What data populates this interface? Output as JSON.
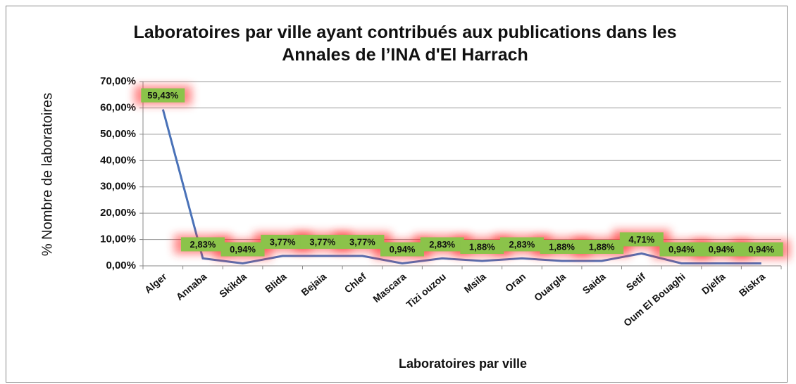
{
  "chart_data": {
    "type": "line",
    "title": "Laboratoires par ville ayant contribués aux publications dans les Annales de l’INA d'El Harrach",
    "xlabel": "Laboratoires par ville",
    "ylabel": "% Nombre de laboratoires",
    "categories": [
      "Alger",
      "Annaba",
      "Skikda",
      "Blida",
      "Bejaia",
      "Chlef",
      "Mascara",
      "Tizi ouzou",
      "Msila",
      "Oran",
      "Ouargla",
      "Saida",
      "Setif",
      "Oum El Bouaghi",
      "Djelfa",
      "Biskra"
    ],
    "series": [
      {
        "name": "Laboratoires",
        "color": "#4a72b8",
        "values": [
          59.43,
          2.83,
          0.94,
          3.77,
          3.77,
          3.77,
          0.94,
          2.83,
          1.88,
          2.83,
          1.88,
          1.88,
          4.71,
          0.94,
          0.94,
          0.94
        ],
        "value_labels": [
          "59,43%",
          "2,83%",
          "0,94%",
          "3,77%",
          "3,77%",
          "3,77%",
          "0,94%",
          "2,83%",
          "1,88%",
          "2,83%",
          "1,88%",
          "1,88%",
          "4,71%",
          "0,94%",
          "0,94%",
          "0,94%"
        ]
      }
    ],
    "ylim": [
      0,
      70
    ],
    "yticks": [
      {
        "value": 0,
        "label": "0,00%"
      },
      {
        "value": 10,
        "label": "10,00%"
      },
      {
        "value": 20,
        "label": "20,00%"
      },
      {
        "value": 30,
        "label": "30,00%"
      },
      {
        "value": 40,
        "label": "40,00%"
      },
      {
        "value": 50,
        "label": "50,00%"
      },
      {
        "value": 60,
        "label": "60,00%"
      },
      {
        "value": 70,
        "label": "70,00%"
      }
    ],
    "grid": true
  }
}
